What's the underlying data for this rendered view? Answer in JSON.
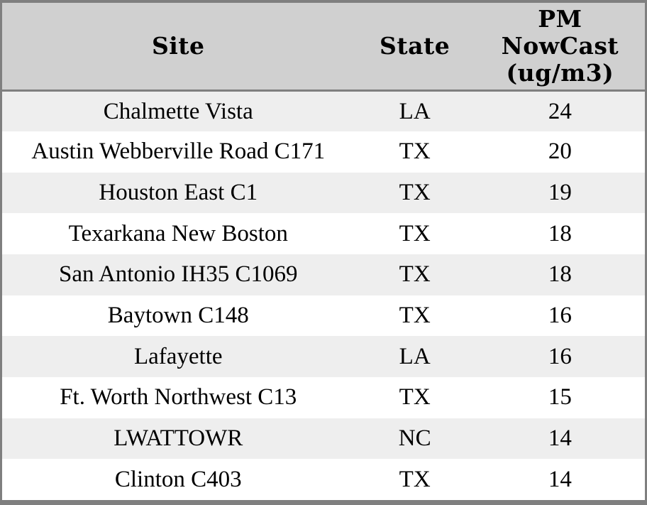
{
  "chart_data": {
    "type": "table",
    "columns": [
      "Site",
      "State",
      "PM NowCast (ug/m3)"
    ],
    "rows": [
      [
        "Chalmette Vista",
        "LA",
        24
      ],
      [
        "Austin Webberville Road C171",
        "TX",
        20
      ],
      [
        "Houston East C1",
        "TX",
        19
      ],
      [
        "Texarkana New Boston",
        "TX",
        18
      ],
      [
        "San Antonio IH35 C1069",
        "TX",
        18
      ],
      [
        "Baytown C148",
        "TX",
        16
      ],
      [
        "Lafayette",
        "LA",
        16
      ],
      [
        "Ft. Worth Northwest C13",
        "TX",
        15
      ],
      [
        "LWATTOWR",
        "NC",
        14
      ],
      [
        "Clinton C403",
        "TX",
        14
      ]
    ]
  },
  "header": {
    "site": "Site",
    "state": "State",
    "pm_lines": [
      "PM",
      "NowCast",
      "(ug/m3)"
    ]
  },
  "colors": {
    "frame_border": "#7f7f7f",
    "header_bg": "#d0d0d0",
    "row_odd_bg": "#eeeeee",
    "row_even_bg": "#ffffff",
    "text": "#000000"
  }
}
